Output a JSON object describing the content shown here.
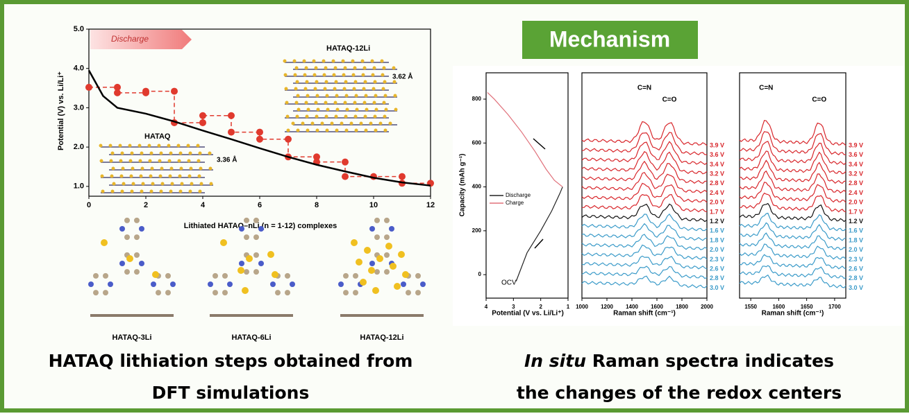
{
  "left_panel": {
    "chart_data": {
      "type": "line",
      "xlabel": "Lithiated HATAQ–nLi (n = 1-12) complexes",
      "ylabel": "Potential (V) vs. Li/Li⁺",
      "xlim": [
        0,
        12
      ],
      "ylim": [
        0.75,
        5.0
      ],
      "xticks": [
        0,
        2,
        4,
        6,
        8,
        10,
        12
      ],
      "yticks": [
        {
          "value": 1.0,
          "label": "1.0"
        },
        {
          "value": 2.0,
          "label": "2.0"
        },
        {
          "value": 3.0,
          "label": "3.0"
        },
        {
          "value": 4.0,
          "label": "4.0"
        },
        {
          "value": 5.0,
          "label": "5.0"
        }
      ],
      "series": [
        {
          "color": "#e03a2e",
          "x": [
            0,
            1,
            1,
            2,
            2,
            3,
            3,
            4,
            4,
            5,
            5,
            6,
            6,
            7,
            7,
            8,
            8,
            9,
            9,
            10,
            11,
            11,
            12
          ],
          "values": [
            3.52,
            3.52,
            3.38,
            3.38,
            3.42,
            3.42,
            2.62,
            2.62,
            2.8,
            2.8,
            2.38,
            2.38,
            2.2,
            2.2,
            1.75,
            1.75,
            1.62,
            1.62,
            1.25,
            1.25,
            1.25,
            1.08,
            1.08
          ]
        },
        {
          "color": "#000000",
          "x": [
            0,
            0.5,
            1,
            2,
            3,
            4,
            5,
            6,
            7,
            8,
            9,
            10,
            11,
            12
          ],
          "values": [
            3.95,
            3.3,
            3.0,
            2.85,
            2.65,
            2.42,
            2.2,
            1.97,
            1.75,
            1.55,
            1.38,
            1.22,
            1.1,
            1.02
          ]
        }
      ],
      "annotations": {
        "discharge": "Discharge",
        "crystal_top": "HATAQ-12Li",
        "spacing_top": "3.62 Å",
        "crystal_bottom": "HATAQ",
        "spacing_bottom": "3.36 Å"
      }
    },
    "molecules": [
      "HATAQ-3Li",
      "HATAQ-6Li",
      "HATAQ-12Li"
    ],
    "caption": [
      "HATAQ lithiation steps obtained from",
      "DFT simulations"
    ]
  },
  "right_panel": {
    "header": "Mechanism",
    "charge_chart": {
      "chart_data": {
        "type": "line",
        "xlabel": "Potential (V vs. Li/Li⁺)",
        "ylabel": "Capacity (mAh g⁻¹)",
        "xlim": [
          4,
          1
        ],
        "ylim": [
          -107,
          920
        ],
        "xticks": [
          4,
          3,
          2,
          1
        ],
        "yticks": [
          0,
          200,
          400,
          600,
          800
        ],
        "series": [
          {
            "name": "Discharge",
            "color": "#222222",
            "x": [
              2.9,
              2.5,
              2.0,
              1.6,
              1.3,
              1.2
            ],
            "values": [
              -30,
              100,
              200,
              290,
              370,
              400
            ]
          },
          {
            "name": "Charge",
            "color": "#e0707a",
            "x": [
              1.2,
              1.5,
              1.8,
              2.2,
              2.7,
              3.2,
              3.7,
              3.95
            ],
            "values": [
              400,
              430,
              480,
              560,
              650,
              730,
              800,
              830
            ]
          }
        ],
        "annotation": "OCV"
      }
    },
    "raman_full": {
      "xlabel": "Raman shift (cm⁻¹)",
      "xlim": [
        1000,
        2000
      ],
      "xticks": [
        1000,
        1200,
        1400,
        1600,
        1800,
        2000
      ],
      "annotations": [
        "C=N",
        "C=O"
      ],
      "spectra": [
        {
          "name": "3.9 V",
          "color": "#d8262b"
        },
        {
          "name": "3.6 V",
          "color": "#d8262b"
        },
        {
          "name": "3.4 V",
          "color": "#d8262b"
        },
        {
          "name": "3.2 V",
          "color": "#d8262b"
        },
        {
          "name": "2.8 V",
          "color": "#d8262b"
        },
        {
          "name": "2.4 V",
          "color": "#d8262b"
        },
        {
          "name": "2.0 V",
          "color": "#d8262b"
        },
        {
          "name": "1.7 V",
          "color": "#d8262b"
        },
        {
          "name": "1.2 V",
          "color": "#111111"
        },
        {
          "name": "1.6 V",
          "color": "#3b9bc9"
        },
        {
          "name": "1.8 V",
          "color": "#3b9bc9"
        },
        {
          "name": "2.0 V",
          "color": "#3b9bc9"
        },
        {
          "name": "2.3 V",
          "color": "#3b9bc9"
        },
        {
          "name": "2.6 V",
          "color": "#3b9bc9"
        },
        {
          "name": "2.8 V",
          "color": "#3b9bc9"
        },
        {
          "name": "3.0 V",
          "color": "#3b9bc9"
        }
      ]
    },
    "raman_zoom": {
      "xlabel": "Raman shift (cm⁻¹)",
      "xlim": [
        1530,
        1720
      ],
      "xticks": [
        1550,
        1600,
        1650,
        1700
      ],
      "annotations": [
        "C=N",
        "C=O"
      ],
      "spectra": [
        {
          "name": "3.9 V",
          "color": "#d8262b"
        },
        {
          "name": "3.6 V",
          "color": "#d8262b"
        },
        {
          "name": "3.4 V",
          "color": "#d8262b"
        },
        {
          "name": "3.2 V",
          "color": "#d8262b"
        },
        {
          "name": "2.8 V",
          "color": "#d8262b"
        },
        {
          "name": "2.4 V",
          "color": "#d8262b"
        },
        {
          "name": "2.0 V",
          "color": "#d8262b"
        },
        {
          "name": "1.7 V",
          "color": "#d8262b"
        },
        {
          "name": "1.2 V",
          "color": "#111111"
        },
        {
          "name": "1.6 V",
          "color": "#3b9bc9"
        },
        {
          "name": "1.8 V",
          "color": "#3b9bc9"
        },
        {
          "name": "2.0 V",
          "color": "#3b9bc9"
        },
        {
          "name": "2.3 V",
          "color": "#3b9bc9"
        },
        {
          "name": "2.6 V",
          "color": "#3b9bc9"
        },
        {
          "name": "2.8 V",
          "color": "#3b9bc9"
        },
        {
          "name": "3.0 V",
          "color": "#3b9bc9"
        }
      ]
    },
    "caption": {
      "italic": "In situ",
      "rest": " Raman spectra indicates",
      "line2": "the changes of the redox centers"
    }
  }
}
